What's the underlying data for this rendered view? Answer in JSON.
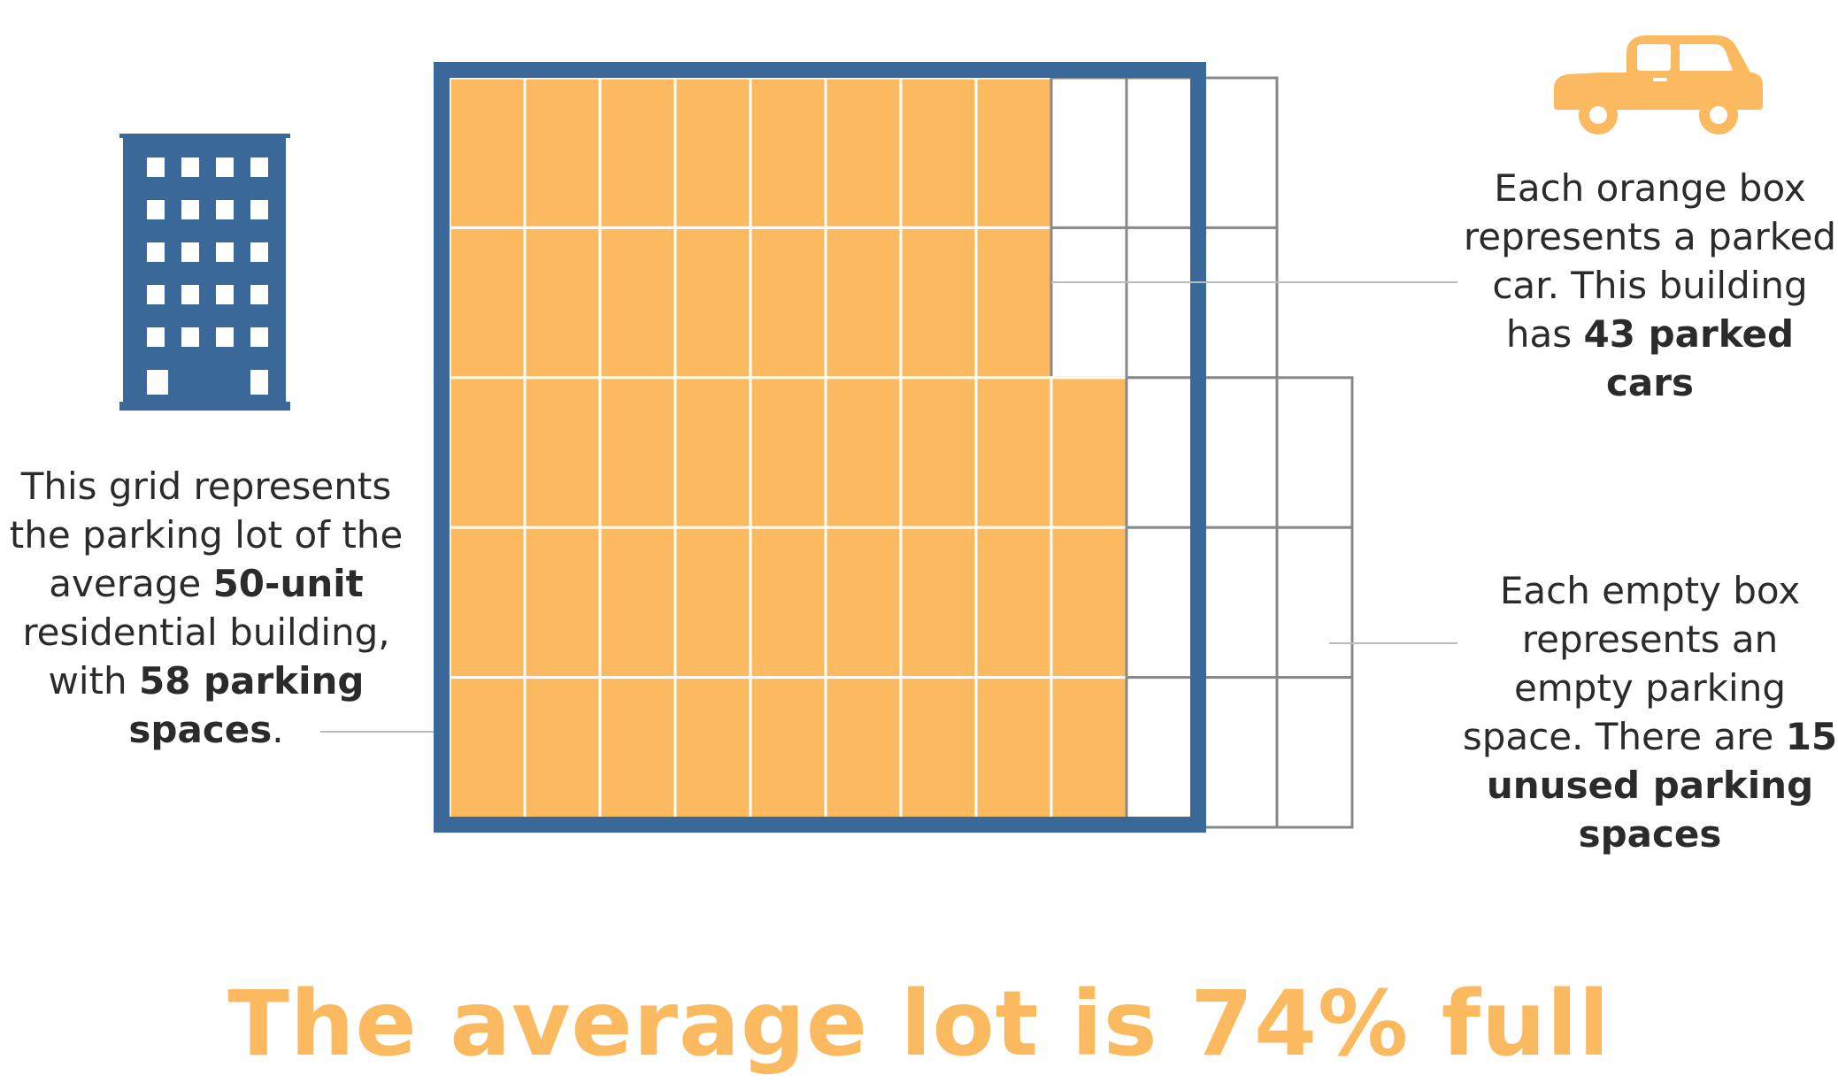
{
  "colors": {
    "orange": "#fbb960",
    "blue": "#3a6898",
    "gray_line": "#888888",
    "text": "#2b2b2b"
  },
  "icons": {
    "building": "apartment-building-icon",
    "car": "car-icon"
  },
  "grid": {
    "columns": 10,
    "rows": 5,
    "occupied_per_row": [
      8,
      8,
      9,
      9,
      9
    ],
    "total_spaces_in_lot": 58,
    "extra_empty_per_row": [
      1,
      1,
      2,
      2,
      2
    ]
  },
  "left_caption": {
    "p1": "This grid represents the parking lot of the average ",
    "b1": "50-unit",
    "p2": " residential building, with ",
    "b2": "58 parking spaces",
    "p3": "."
  },
  "top_caption": {
    "p1": "Each orange box represents a parked car. This building has ",
    "b1": "43 parked cars"
  },
  "bottom_caption": {
    "p1": "Each empty box represents an empty parking space. There are ",
    "b1": "15 unused parking spaces"
  },
  "headline": "The average lot is 74% full"
}
